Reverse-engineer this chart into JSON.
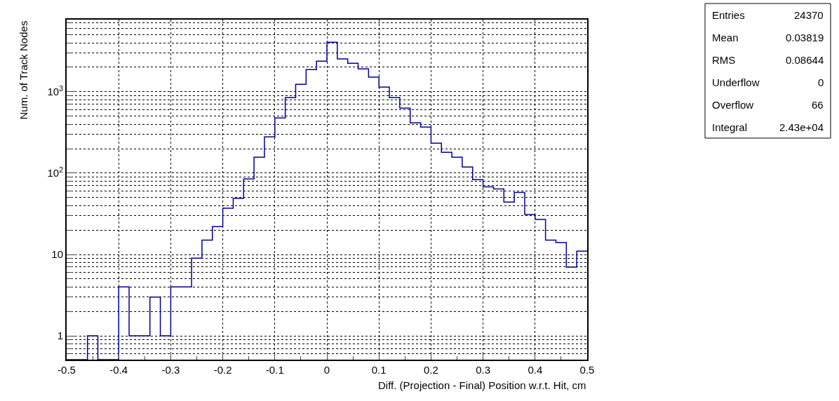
{
  "chart_data": {
    "type": "histogram",
    "xlabel": "Diff. (Projection - Final) Position w.r.t. Hit, cm",
    "ylabel": "Num. of Track Nodes",
    "bins": [
      -0.5,
      -0.48,
      -0.46,
      -0.44,
      -0.42,
      -0.4,
      -0.38,
      -0.36,
      -0.34,
      -0.32,
      -0.3,
      -0.28,
      -0.26,
      -0.24,
      -0.22,
      -0.2,
      -0.18,
      -0.16,
      -0.14,
      -0.12,
      -0.1,
      -0.08,
      -0.06,
      -0.04,
      -0.02,
      0,
      0.02,
      0.04,
      0.06,
      0.08,
      0.1,
      0.12,
      0.14,
      0.16,
      0.18,
      0.2,
      0.22,
      0.24,
      0.26,
      0.28,
      0.3,
      0.32,
      0.34,
      0.36,
      0.38,
      0.4,
      0.42,
      0.44,
      0.46,
      0.48,
      0.5
    ],
    "values": [
      null,
      null,
      1,
      null,
      null,
      4,
      1,
      1,
      3,
      1,
      4,
      4,
      9,
      15,
      22,
      37,
      49,
      85,
      157,
      279,
      477,
      848,
      1235,
      1876,
      2380,
      4070,
      2530,
      2240,
      1915,
      1517,
      1143,
      848,
      630,
      415,
      368,
      233,
      180,
      157,
      119,
      83,
      68,
      64,
      44,
      58,
      31,
      27,
      15,
      14,
      7,
      11
    ],
    "color": "#000099",
    "log": true,
    "grid": true,
    "xlim": [
      -0.5,
      0.5
    ],
    "xticks": [
      -0.5,
      -0.4,
      -0.3,
      -0.2,
      -0.1,
      0,
      0.1,
      0.2,
      0.3,
      0.4,
      0.5
    ],
    "ylim": [
      0.51,
      7700
    ],
    "yticks": [
      1,
      10,
      {
        "value": 100,
        "label": "10$^{2}$"
      },
      {
        "value": 1000,
        "label": "10$^{3}$"
      }
    ],
    "annotations": [
      "Entries",
      "24370",
      "Mean",
      "0.03819",
      "RMS",
      "0.08644",
      "Underflow",
      "0",
      "Overflow",
      "66",
      "Integral",
      "2.43e+04"
    ]
  }
}
